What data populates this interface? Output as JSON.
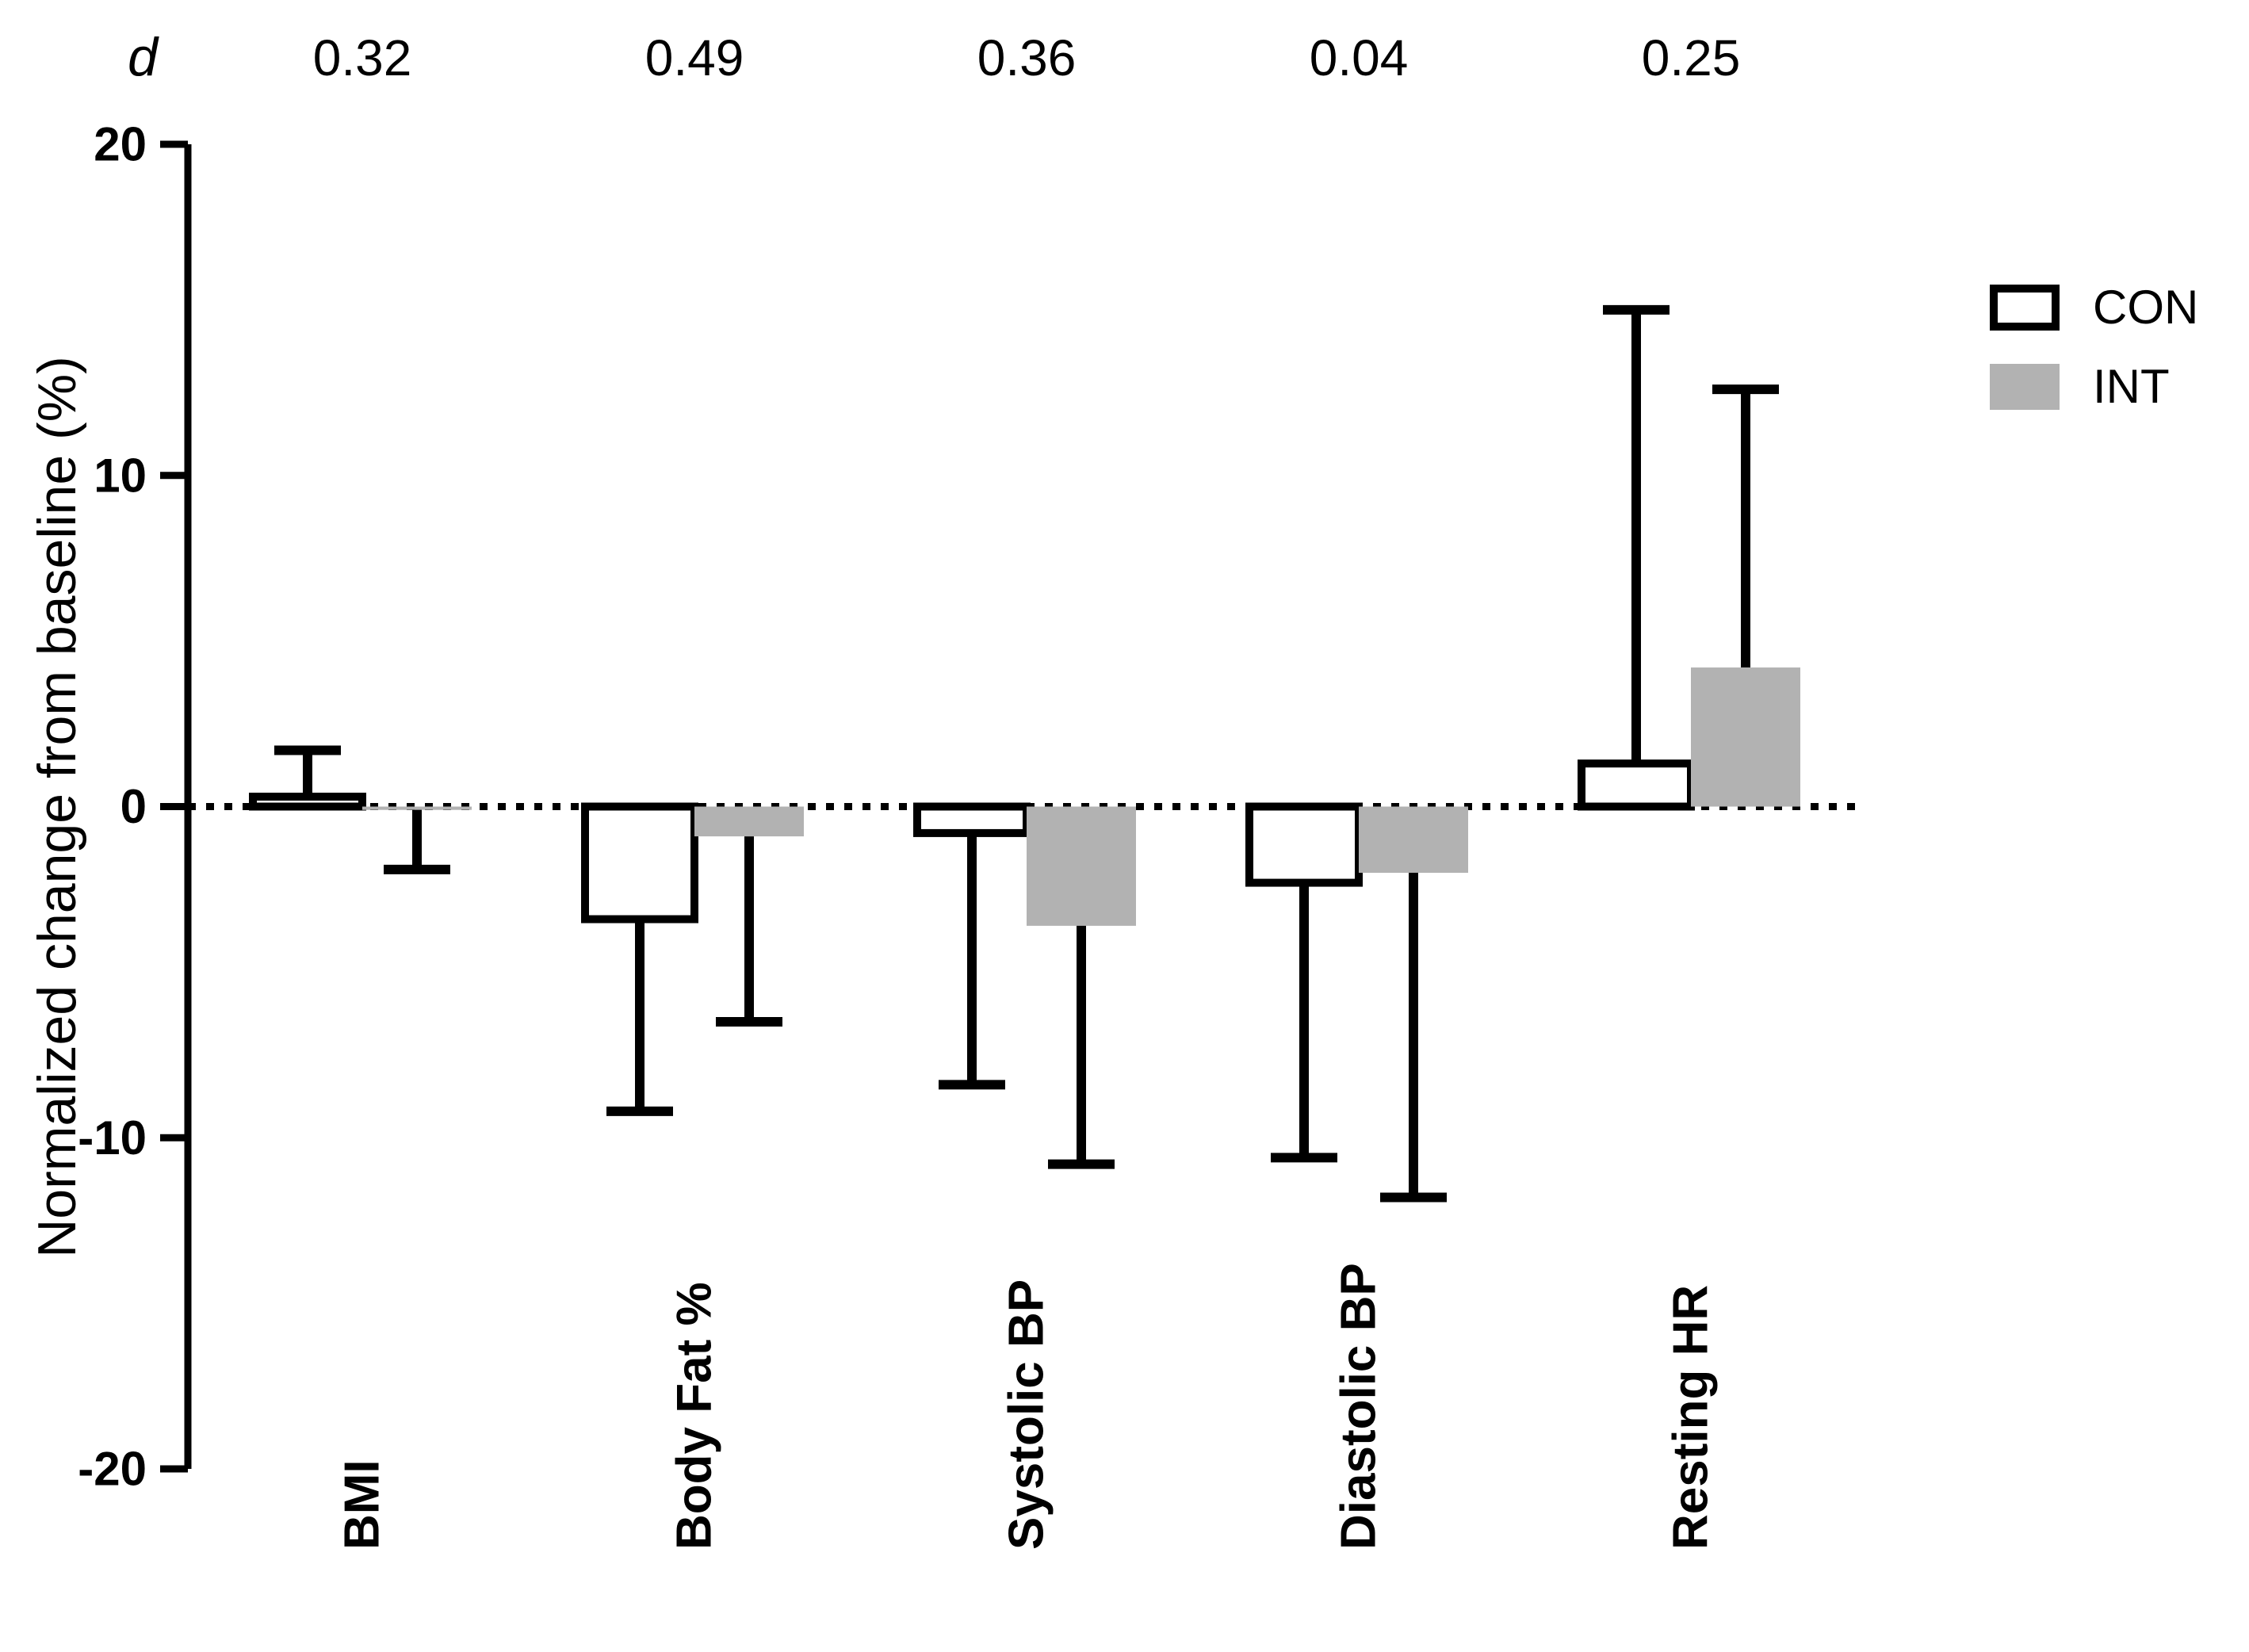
{
  "figure": {
    "background": "#ffffff",
    "zero_line_style": "dotted",
    "axis_color": "#000000"
  },
  "chart_data": {
    "type": "bar",
    "title": "",
    "xlabel": "",
    "ylabel": "Normalized change from baseline (%)",
    "ylim": [
      -20,
      20
    ],
    "y_ticks": [
      "20",
      "10",
      "0",
      "-10",
      "-20"
    ],
    "y_tick_values": [
      20,
      10,
      0,
      -10,
      -20
    ],
    "grid": false,
    "legend_position": "right",
    "effect_size_label": "d",
    "effect_sizes": [
      "0.32",
      "0.49",
      "0.36",
      "0.04",
      "0.25"
    ],
    "categories": [
      "BMI",
      "Body Fat %",
      "Systolic BP",
      "Diastolic BP",
      "Resting HR"
    ],
    "series": [
      {
        "name": "CON",
        "fill": "#ffffff",
        "stroke": "#000000",
        "values": [
          0.3,
          -3.4,
          -0.8,
          -2.3,
          1.3
        ],
        "error_whisker_ends": [
          1.7,
          -9.2,
          -8.4,
          -10.6,
          15.0
        ]
      },
      {
        "name": "INT",
        "fill": "#b2b2b2",
        "stroke": "none",
        "values": [
          -0.1,
          -0.9,
          -3.6,
          -2.0,
          4.2
        ],
        "error_whisker_ends": [
          -1.9,
          -6.5,
          -10.8,
          -11.8,
          12.6
        ]
      }
    ]
  }
}
